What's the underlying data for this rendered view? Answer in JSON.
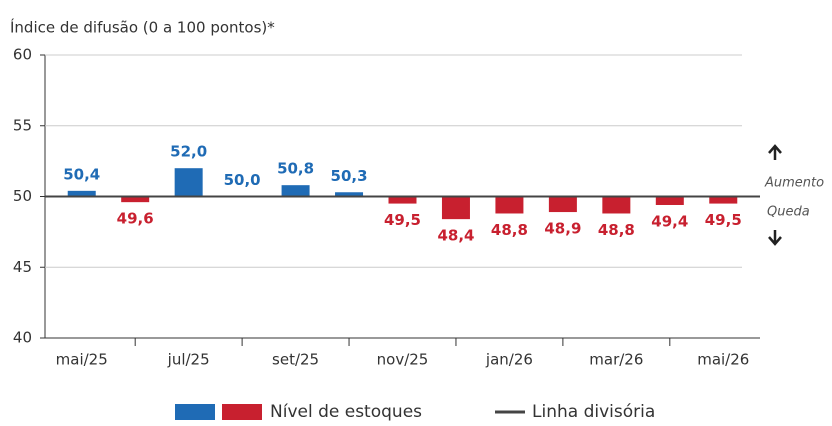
{
  "chart_data": {
    "type": "bar",
    "subtitle": "Índice de difusão (0 a 100 pontos)*",
    "categories": [
      "mai/25",
      null,
      "jul/25",
      null,
      "set/25",
      null,
      "nov/25",
      null,
      "jan/26",
      null,
      "mar/26",
      null,
      "mai/26"
    ],
    "series": [
      {
        "name": "Nível de estoques",
        "color": "#1f6bb5",
        "negative_color": "#c8202f",
        "values": [
          50.4,
          49.6,
          52.0,
          50.0,
          50.8,
          50.3,
          49.5,
          48.4,
          48.8,
          48.9,
          48.8,
          49.4,
          49.5
        ],
        "value_labels": [
          "50,4",
          "49,6",
          "52,0",
          "50,0",
          "50,8",
          "50,3",
          "49,5",
          "48,4",
          "48,8",
          "48,9",
          "48,8",
          "49,4",
          "49,5"
        ]
      }
    ],
    "reference_line": {
      "value": 50,
      "label": "Linha divisória",
      "color": "#444444"
    },
    "annotations": [
      "Aumento",
      "Queda"
    ],
    "ylim": [
      40,
      60
    ],
    "yticks": [
      40,
      45,
      50,
      55,
      60
    ],
    "grid": true
  }
}
